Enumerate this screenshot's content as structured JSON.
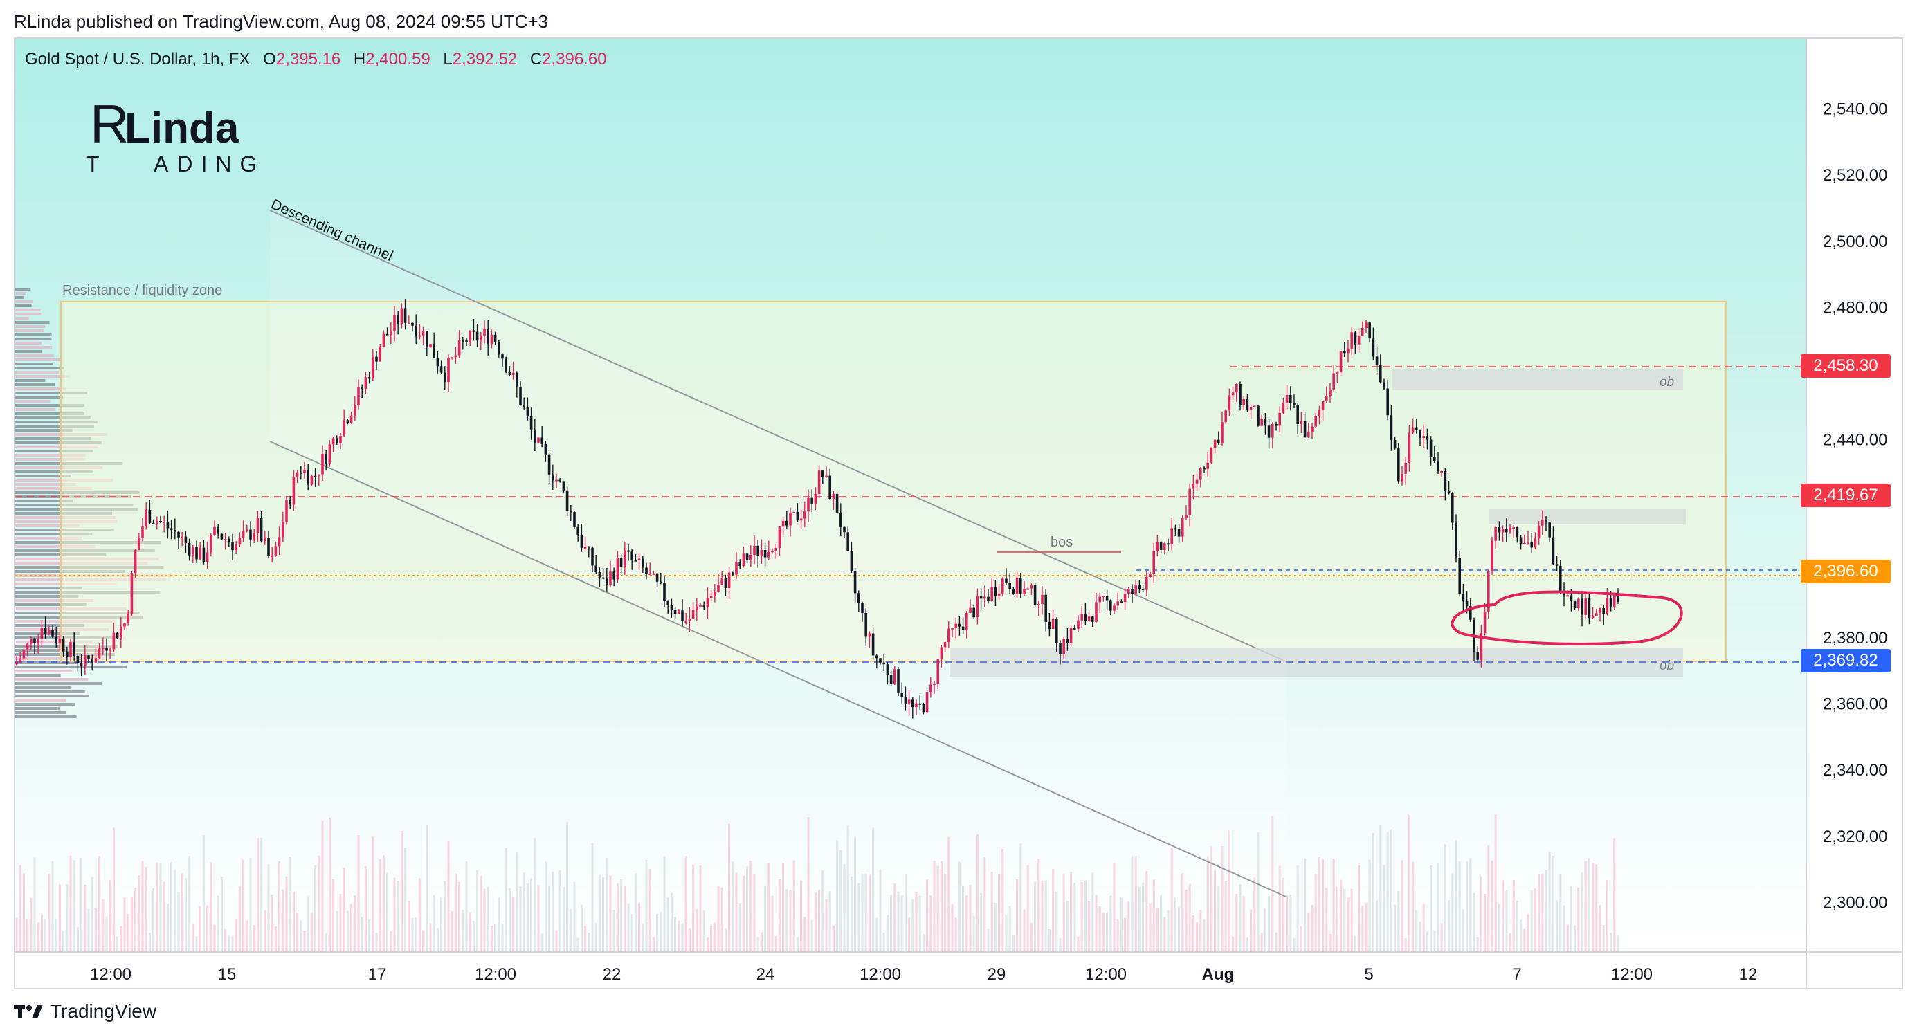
{
  "header": {
    "published": "RLinda published on TradingView.com, Aug 08, 2024 09:55 UTC+3"
  },
  "symbol": {
    "name": "Gold Spot / U.S. Dollar, 1h, FX",
    "o_label": "O",
    "o": "2,395.16",
    "h_label": "H",
    "h": "2,400.59",
    "l_label": "L",
    "l": "2,392.52",
    "c_label": "C",
    "c": "2,396.60"
  },
  "logo": {
    "text_main": "Linda",
    "text_sub": "ADING",
    "letter_r": "R",
    "letter_t": "T"
  },
  "annotations": {
    "zone": "Resistance / liquidity zone",
    "channel": "Descending channel",
    "bos": "bos",
    "ob1": "ob",
    "ob2": "ob"
  },
  "price_labels": [
    {
      "value": "2,458.30",
      "color": "#f23645"
    },
    {
      "value": "2,419.67",
      "color": "#f23645"
    },
    {
      "value": "2,396.60",
      "color": "#ff9800"
    },
    {
      "value": "2,369.82",
      "color": "#2962ff"
    }
  ],
  "footer": {
    "brand": "TradingView"
  },
  "colors": {
    "up": "#e0245e",
    "down": "#131722",
    "zone": "#f7c873",
    "accent_red": "#f23645",
    "accent_blue": "#2962ff"
  },
  "chart_data": {
    "type": "candlestick",
    "title": "Gold Spot / U.S. Dollar, 1h, FX",
    "ylim": [
      2285,
      2555
    ],
    "y_ticks": [
      "2,540.00",
      "2,520.00",
      "2,500.00",
      "2,480.00",
      "2,440.00",
      "2,380.00",
      "2,360.00",
      "2,340.00",
      "2,320.00",
      "2,300.00"
    ],
    "x_ticks": [
      "12:00",
      "15",
      "17",
      "12:00",
      "22",
      "24",
      "12:00",
      "29",
      "12:00",
      "Aug",
      "5",
      "7",
      "12:00",
      "12"
    ],
    "price_path": [
      [
        0,
        2372
      ],
      [
        40,
        2384
      ],
      [
        80,
        2376
      ],
      [
        100,
        2372
      ],
      [
        140,
        2380
      ],
      [
        160,
        2385
      ],
      [
        175,
        2408
      ],
      [
        190,
        2418
      ],
      [
        230,
        2412
      ],
      [
        270,
        2404
      ],
      [
        290,
        2412
      ],
      [
        320,
        2408
      ],
      [
        350,
        2414
      ],
      [
        370,
        2402
      ],
      [
        390,
        2418
      ],
      [
        410,
        2432
      ],
      [
        430,
        2428
      ],
      [
        460,
        2440
      ],
      [
        500,
        2455
      ],
      [
        530,
        2470
      ],
      [
        560,
        2478
      ],
      [
        590,
        2472
      ],
      [
        620,
        2460
      ],
      [
        650,
        2470
      ],
      [
        690,
        2472
      ],
      [
        720,
        2458
      ],
      [
        750,
        2440
      ],
      [
        790,
        2425
      ],
      [
        820,
        2408
      ],
      [
        850,
        2396
      ],
      [
        880,
        2405
      ],
      [
        910,
        2400
      ],
      [
        940,
        2392
      ],
      [
        970,
        2385
      ],
      [
        1000,
        2392
      ],
      [
        1030,
        2398
      ],
      [
        1060,
        2405
      ],
      [
        1090,
        2408
      ],
      [
        1120,
        2415
      ],
      [
        1145,
        2420
      ],
      [
        1165,
        2430
      ],
      [
        1190,
        2418
      ],
      [
        1210,
        2396
      ],
      [
        1240,
        2375
      ],
      [
        1270,
        2368
      ],
      [
        1300,
        2357
      ],
      [
        1320,
        2362
      ],
      [
        1340,
        2378
      ],
      [
        1370,
        2385
      ],
      [
        1400,
        2392
      ],
      [
        1430,
        2398
      ],
      [
        1450,
        2395
      ],
      [
        1480,
        2392
      ],
      [
        1510,
        2378
      ],
      [
        1540,
        2385
      ],
      [
        1570,
        2390
      ],
      [
        1600,
        2392
      ],
      [
        1625,
        2395
      ],
      [
        1650,
        2406
      ],
      [
        1680,
        2412
      ],
      [
        1710,
        2430
      ],
      [
        1740,
        2442
      ],
      [
        1760,
        2455
      ],
      [
        1790,
        2448
      ],
      [
        1810,
        2440
      ],
      [
        1840,
        2452
      ],
      [
        1870,
        2440
      ],
      [
        1900,
        2458
      ],
      [
        1930,
        2470
      ],
      [
        1950,
        2474
      ],
      [
        1965,
        2462
      ],
      [
        1980,
        2452
      ],
      [
        2000,
        2428
      ],
      [
        2020,
        2444
      ],
      [
        2045,
        2438
      ],
      [
        2070,
        2425
      ],
      [
        2085,
        2397
      ],
      [
        2100,
        2385
      ],
      [
        2115,
        2373
      ],
      [
        2135,
        2412
      ],
      [
        2160,
        2415
      ],
      [
        2190,
        2408
      ],
      [
        2210,
        2415
      ],
      [
        2230,
        2398
      ],
      [
        2260,
        2390
      ],
      [
        2290,
        2388
      ],
      [
        2320,
        2392
      ],
      [
        2340,
        2398
      ],
      [
        2360,
        2405
      ],
      [
        2380,
        2396
      ],
      [
        2400,
        2390
      ],
      [
        2420,
        2386
      ],
      [
        2440,
        2392
      ],
      [
        2460,
        2395
      ]
    ],
    "levels": [
      2458.3,
      2419.67,
      2396.6,
      2369.82
    ],
    "last_close": 2396.6
  }
}
